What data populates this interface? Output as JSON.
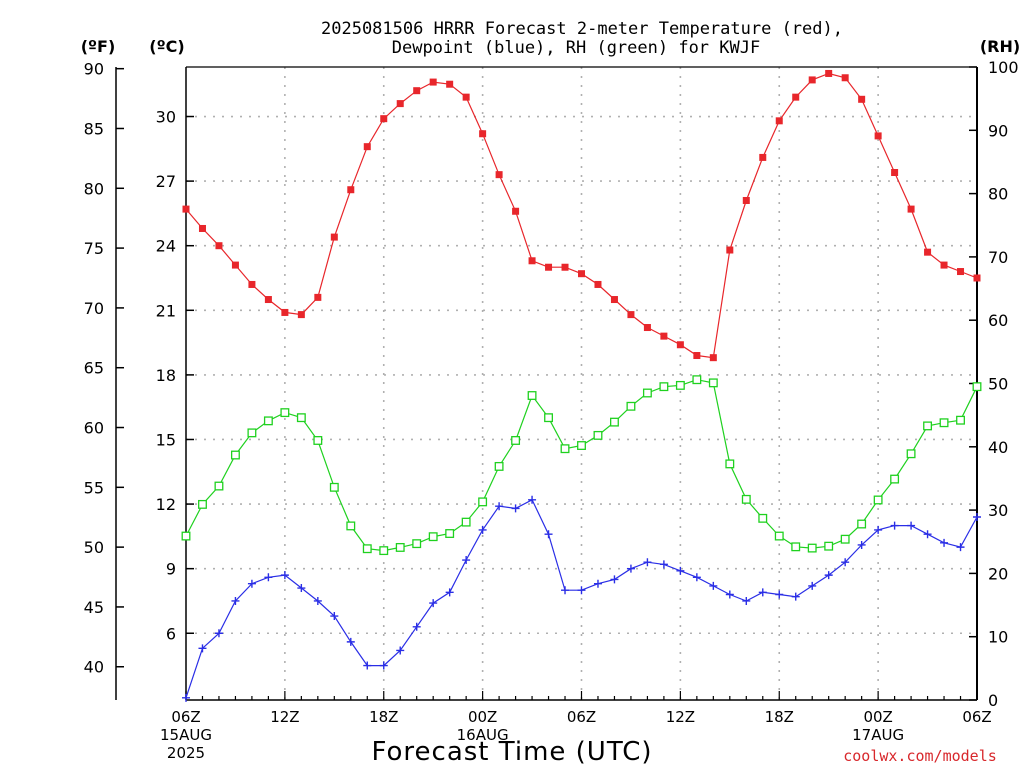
{
  "chart_data": {
    "type": "line",
    "title_lines": [
      "2025081506 HRRR Forecast 2-meter Temperature (red),",
      "Dewpoint (blue), RH (green) for KWJF"
    ],
    "xlabel": "Forecast Time (UTC)",
    "credit": "coolwx.com/models",
    "units": {
      "fahrenheit": "(ºF)",
      "celsius": "(ºC)",
      "rh": "(RH)"
    },
    "x": [
      0,
      1,
      2,
      3,
      4,
      5,
      6,
      7,
      8,
      9,
      10,
      11,
      12,
      13,
      14,
      15,
      16,
      17,
      18,
      19,
      20,
      21,
      22,
      23,
      24,
      25,
      26,
      27,
      28,
      29,
      30,
      31,
      32,
      33,
      34,
      35,
      36,
      37,
      38,
      39,
      40,
      41,
      42,
      43,
      44,
      45,
      46,
      47,
      48
    ],
    "xlim": [
      0,
      48
    ],
    "x_ticks": [
      {
        "hour": 0,
        "line1": "06Z",
        "line2": "15AUG",
        "line3": "2025"
      },
      {
        "hour": 6,
        "line1": "12Z",
        "line2": "",
        "line3": ""
      },
      {
        "hour": 12,
        "line1": "18Z",
        "line2": "",
        "line3": ""
      },
      {
        "hour": 18,
        "line1": "00Z",
        "line2": "16AUG",
        "line3": ""
      },
      {
        "hour": 24,
        "line1": "06Z",
        "line2": "",
        "line3": ""
      },
      {
        "hour": 30,
        "line1": "12Z",
        "line2": "",
        "line3": ""
      },
      {
        "hour": 36,
        "line1": "18Z",
        "line2": "",
        "line3": ""
      },
      {
        "hour": 42,
        "line1": "00Z",
        "line2": "17AUG",
        "line3": ""
      },
      {
        "hour": 48,
        "line1": "06Z",
        "line2": "",
        "line3": ""
      }
    ],
    "y_celsius": {
      "range": [
        2.9,
        32.3
      ],
      "ticks": [
        "6",
        "9",
        "12",
        "15",
        "18",
        "21",
        "24",
        "27",
        "30"
      ]
    },
    "y_fahrenheit": {
      "ticks": [
        "40",
        "45",
        "50",
        "55",
        "60",
        "65",
        "70",
        "75",
        "80",
        "85",
        "90"
      ]
    },
    "y_rh": {
      "range": [
        0,
        100
      ],
      "ticks": [
        "0",
        "10",
        "20",
        "30",
        "40",
        "50",
        "60",
        "70",
        "80",
        "90",
        "100"
      ]
    },
    "grid": true,
    "series": [
      {
        "axis": "celsius",
        "color": "#e8262b",
        "marker": "filled-square",
        "values": [
          25.7,
          24.8,
          24.0,
          23.1,
          22.2,
          21.5,
          20.9,
          20.8,
          21.6,
          24.4,
          26.6,
          28.6,
          29.9,
          30.6,
          31.2,
          31.6,
          31.5,
          30.9,
          29.2,
          27.3,
          25.6,
          23.3,
          23.0,
          23.0,
          22.7,
          22.2,
          21.5,
          20.8,
          20.2,
          19.8,
          19.4,
          18.9,
          18.8,
          23.8,
          26.1,
          28.1,
          29.8,
          30.9,
          31.7,
          32.0,
          31.8,
          30.8,
          29.1,
          27.4,
          25.7,
          23.7,
          23.1,
          22.8,
          22.5
        ]
      },
      {
        "axis": "celsius",
        "color": "#2a2ee6",
        "marker": "plus",
        "values": [
          3.0,
          5.3,
          6.0,
          7.5,
          8.3,
          8.6,
          8.7,
          8.1,
          7.5,
          6.8,
          5.6,
          4.5,
          4.5,
          5.2,
          6.3,
          7.4,
          7.9,
          9.4,
          10.8,
          11.9,
          11.8,
          12.2,
          10.6,
          8.0,
          8.0,
          8.3,
          8.5,
          9.0,
          9.3,
          9.2,
          8.9,
          8.6,
          8.2,
          7.8,
          7.5,
          7.9,
          7.8,
          7.7,
          8.2,
          8.7,
          9.3,
          10.1,
          10.8,
          11.0,
          11.0,
          10.6,
          10.2,
          10.0,
          11.4
        ]
      },
      {
        "axis": "rh",
        "color": "#1fd11f",
        "marker": "open-square",
        "values": [
          25.9,
          30.9,
          33.8,
          38.7,
          42.2,
          44.1,
          45.4,
          44.6,
          41.0,
          33.6,
          27.5,
          23.9,
          23.6,
          24.1,
          24.7,
          25.8,
          26.3,
          28.1,
          31.3,
          36.9,
          41.0,
          48.1,
          44.6,
          39.7,
          40.2,
          41.8,
          43.9,
          46.4,
          48.5,
          49.5,
          49.7,
          50.6,
          50.1,
          37.3,
          31.7,
          28.7,
          25.9,
          24.2,
          24.0,
          24.3,
          25.4,
          27.8,
          31.6,
          34.9,
          38.9,
          43.3,
          43.8,
          44.2,
          49.5
        ]
      }
    ]
  }
}
